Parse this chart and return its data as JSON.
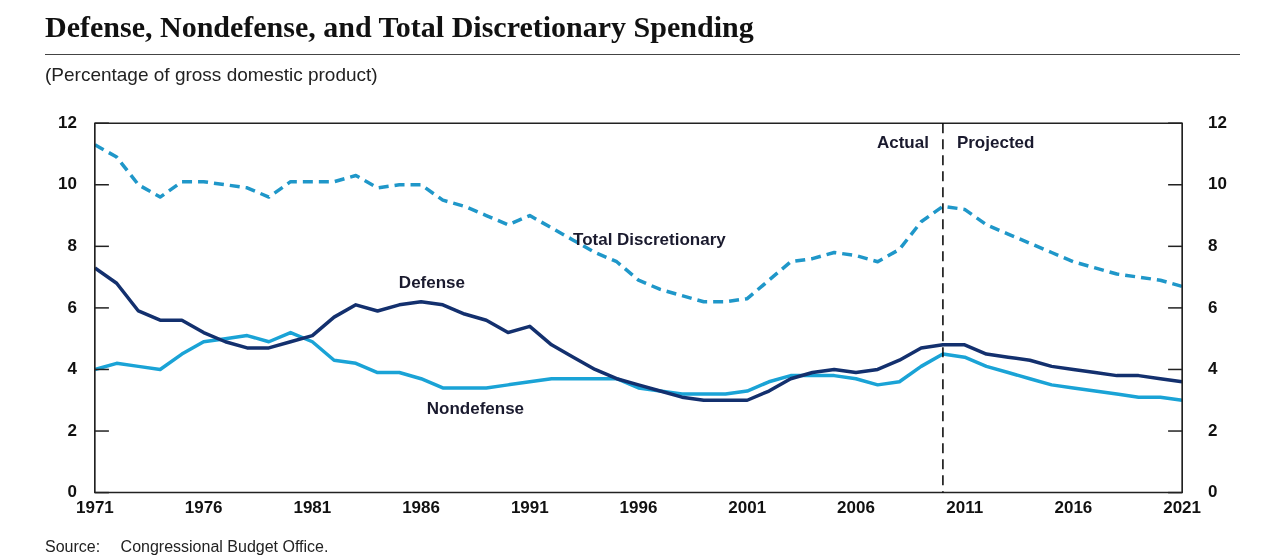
{
  "chart_data": {
    "type": "line",
    "title": "Defense, Nondefense, and Total Discretionary Spending",
    "subtitle": "(Percentage of gross domestic product)",
    "x": [
      1971,
      1972,
      1973,
      1974,
      1975,
      1976,
      1977,
      1978,
      1979,
      1980,
      1981,
      1982,
      1983,
      1984,
      1985,
      1986,
      1987,
      1988,
      1989,
      1990,
      1991,
      1992,
      1993,
      1994,
      1995,
      1996,
      1997,
      1998,
      1999,
      2000,
      2001,
      2002,
      2003,
      2004,
      2005,
      2006,
      2007,
      2008,
      2009,
      2010,
      2011,
      2012,
      2013,
      2014,
      2015,
      2016,
      2017,
      2018,
      2019,
      2020,
      2021
    ],
    "series": [
      {
        "name": "Total Discretionary",
        "color": "#1f97c9",
        "line_style": "dashed",
        "values": [
          11.3,
          10.9,
          10.0,
          9.6,
          10.1,
          10.1,
          10.0,
          9.9,
          9.6,
          10.1,
          10.1,
          10.1,
          10.3,
          9.9,
          10.0,
          10.0,
          9.5,
          9.3,
          9.0,
          8.7,
          9.0,
          8.6,
          8.2,
          7.8,
          7.5,
          6.9,
          6.6,
          6.4,
          6.2,
          6.2,
          6.3,
          6.9,
          7.5,
          7.6,
          7.8,
          7.7,
          7.5,
          7.9,
          8.8,
          9.3,
          9.2,
          8.7,
          8.4,
          8.1,
          7.8,
          7.5,
          7.3,
          7.1,
          7.0,
          6.9,
          6.7
        ]
      },
      {
        "name": "Defense",
        "color": "#13306e",
        "line_style": "solid",
        "values": [
          7.3,
          6.8,
          5.9,
          5.6,
          5.6,
          5.2,
          4.9,
          4.7,
          4.7,
          4.9,
          5.1,
          5.7,
          6.1,
          5.9,
          6.1,
          6.2,
          6.1,
          5.8,
          5.6,
          5.2,
          5.4,
          4.8,
          4.4,
          4.0,
          3.7,
          3.5,
          3.3,
          3.1,
          3.0,
          3.0,
          3.0,
          3.3,
          3.7,
          3.9,
          4.0,
          3.9,
          4.0,
          4.3,
          4.7,
          4.8,
          4.8,
          4.5,
          4.4,
          4.3,
          4.1,
          4.0,
          3.9,
          3.8,
          3.8,
          3.7,
          3.6
        ]
      },
      {
        "name": "Nondefense",
        "color": "#1aa3d6",
        "line_style": "solid",
        "values": [
          4.0,
          4.2,
          4.1,
          4.0,
          4.5,
          4.9,
          5.0,
          5.1,
          4.9,
          5.2,
          4.9,
          4.3,
          4.2,
          3.9,
          3.9,
          3.7,
          3.4,
          3.4,
          3.4,
          3.5,
          3.6,
          3.7,
          3.7,
          3.7,
          3.7,
          3.4,
          3.3,
          3.2,
          3.2,
          3.2,
          3.3,
          3.6,
          3.8,
          3.8,
          3.8,
          3.7,
          3.5,
          3.6,
          4.1,
          4.5,
          4.4,
          4.1,
          3.9,
          3.7,
          3.5,
          3.4,
          3.3,
          3.2,
          3.1,
          3.1,
          3.0
        ]
      }
    ],
    "xlim": [
      1971,
      2021
    ],
    "xticks": [
      1971,
      1976,
      1981,
      1986,
      1991,
      1996,
      2001,
      2006,
      2011,
      2016,
      2021
    ],
    "ylim": [
      0,
      12
    ],
    "yticks": [
      0,
      2,
      4,
      6,
      8,
      10,
      12
    ],
    "y2lim": [
      0,
      12
    ],
    "y2ticks": [
      0,
      2,
      4,
      6,
      8,
      10,
      12
    ],
    "ref_lines": [
      {
        "axis": "x",
        "value": 2010,
        "line_style": "dashed",
        "color": "#000000"
      }
    ],
    "annotations": [
      "Actual",
      "Projected",
      "Source:  Congressional Budget Office."
    ],
    "grid": false,
    "legend": false,
    "marker": "none"
  }
}
